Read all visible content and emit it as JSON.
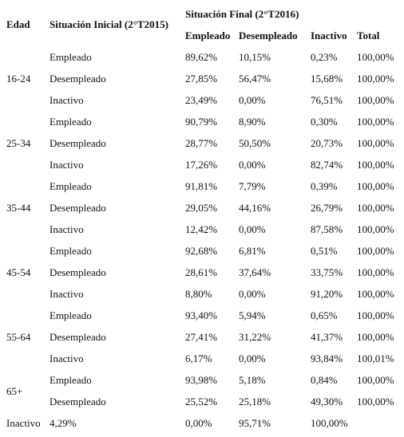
{
  "header": {
    "edad": "Edad",
    "initial": "Situación Inicial (2°T2015)",
    "final": "Situación Final (2°T2016)",
    "cols": [
      "Empleado",
      "Desempleado",
      "Inactivo",
      "Total"
    ]
  },
  "groups": [
    {
      "age": "16-24",
      "rows": [
        {
          "situation": "Empleado",
          "values": [
            "89,62%",
            "10,15%",
            "0,23%",
            "100,00%"
          ]
        },
        {
          "situation": "Desempleado",
          "values": [
            "27,85%",
            "56,47%",
            "15,68%",
            "100,00%"
          ]
        },
        {
          "situation": "Inactivo",
          "values": [
            "23,49%",
            "0,00%",
            "76,51%",
            "100,00%"
          ]
        }
      ]
    },
    {
      "age": "25-34",
      "rows": [
        {
          "situation": "Empleado",
          "values": [
            "90,79%",
            "8,90%",
            "0,30%",
            "100,00%"
          ]
        },
        {
          "situation": "Desempleado",
          "values": [
            "28,77%",
            "50,50%",
            "20,73%",
            "100,00%"
          ]
        },
        {
          "situation": "Inactivo",
          "values": [
            "17,26%",
            "0,00%",
            "82,74%",
            "100,00%"
          ]
        }
      ]
    },
    {
      "age": "35-44",
      "rows": [
        {
          "situation": "Empleado",
          "values": [
            "91,81%",
            "7,79%",
            "0,39%",
            "100,00%"
          ]
        },
        {
          "situation": "Desempleado",
          "values": [
            "29,05%",
            "44,16%",
            "26,79%",
            "100,00%"
          ]
        },
        {
          "situation": "Inactivo",
          "values": [
            "12,42%",
            "0,00%",
            "87,58%",
            "100,00%"
          ]
        }
      ]
    },
    {
      "age": "45-54",
      "rows": [
        {
          "situation": "Empleado",
          "values": [
            "92,68%",
            "6,81%",
            "0,51%",
            "100,00%"
          ]
        },
        {
          "situation": "Desempleado",
          "values": [
            "28,61%",
            "37,64%",
            "33,75%",
            "100,00%"
          ]
        },
        {
          "situation": "Inactivo",
          "values": [
            "8,80%",
            "0,00%",
            "91,20%",
            "100,00%"
          ]
        }
      ]
    },
    {
      "age": "55-64",
      "rows": [
        {
          "situation": "Empleado",
          "values": [
            "93,40%",
            "5,94%",
            "0,65%",
            "100,00%"
          ]
        },
        {
          "situation": "Desempleado",
          "values": [
            "27,41%",
            "31,22%",
            "41,37%",
            "100,00%"
          ]
        },
        {
          "situation": "Inactivo",
          "values": [
            "6,17%",
            "0,00%",
            "93,84%",
            "100,01%"
          ]
        }
      ]
    },
    {
      "age": "65+",
      "rows": [
        {
          "situation": "Empleado",
          "values": [
            "93,98%",
            "5,18%",
            "0,84%",
            "100,00%"
          ]
        },
        {
          "situation": "Desempleado",
          "values": [
            "25,52%",
            "25,18%",
            "49,30%",
            "100,00%"
          ]
        }
      ]
    }
  ],
  "last_row": [
    "Inactivo",
    "4,29%",
    "0,00%",
    "95,71%",
    "100,00%"
  ]
}
